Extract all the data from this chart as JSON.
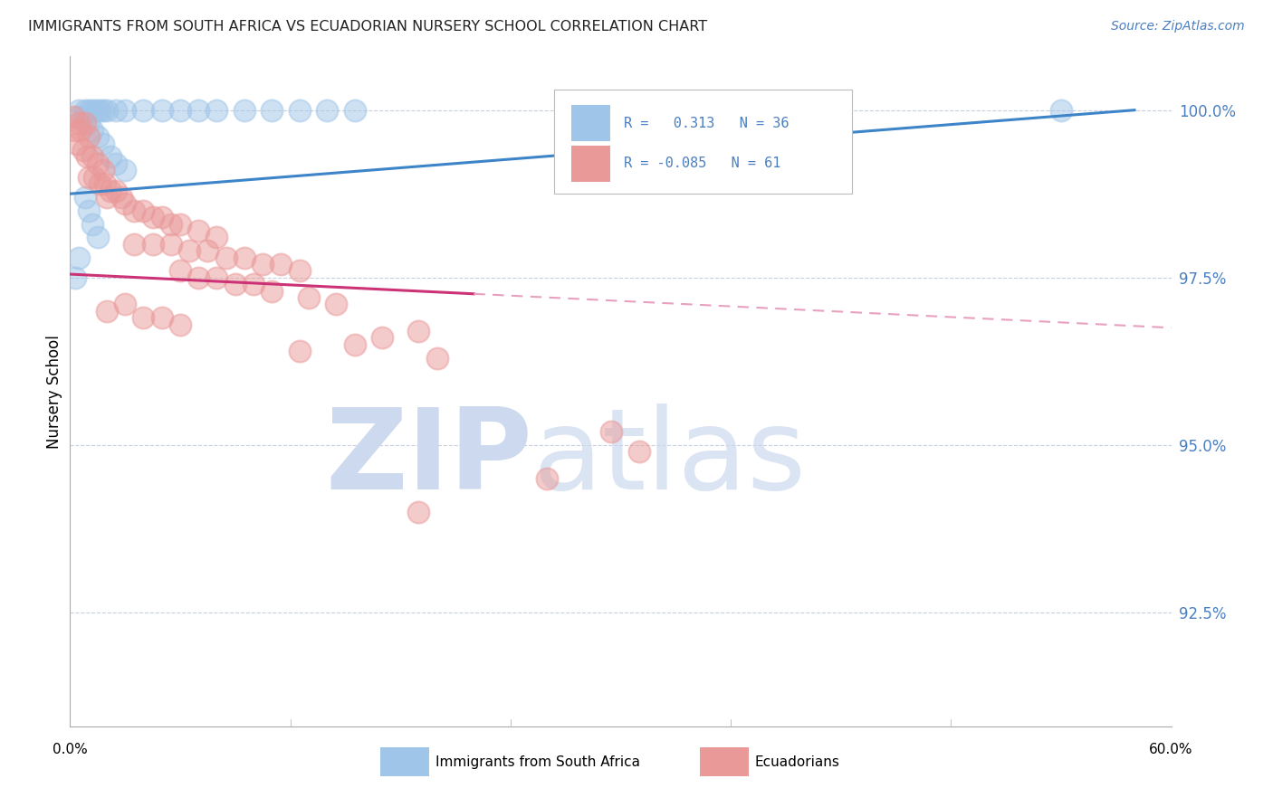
{
  "title": "IMMIGRANTS FROM SOUTH AFRICA VS ECUADORIAN NURSERY SCHOOL CORRELATION CHART",
  "source": "Source: ZipAtlas.com",
  "ylabel": "Nursery School",
  "ytick_labels": [
    "100.0%",
    "97.5%",
    "95.0%",
    "92.5%"
  ],
  "ytick_values": [
    1.0,
    0.975,
    0.95,
    0.925
  ],
  "xmin": 0.0,
  "xmax": 0.6,
  "ymin": 0.908,
  "ymax": 1.008,
  "legend_blue_label": "Immigrants from South Africa",
  "legend_pink_label": "Ecuadorians",
  "R_blue": "0.313",
  "N_blue": 36,
  "R_pink": "-0.085",
  "N_pink": 61,
  "blue_color": "#9fc5e8",
  "pink_color": "#ea9999",
  "trendline_blue_color": "#3d85c8",
  "trendline_pink_color": "#cc3377",
  "trendline_pink_dashed_color": "#e8a0c0",
  "watermark_zip_color": "#ccd9ee",
  "watermark_atlas_color": "#ccd9ee",
  "blue_points": [
    [
      0.005,
      1.0
    ],
    [
      0.008,
      1.0
    ],
    [
      0.01,
      1.0
    ],
    [
      0.012,
      1.0
    ],
    [
      0.014,
      1.0
    ],
    [
      0.016,
      1.0
    ],
    [
      0.018,
      1.0
    ],
    [
      0.02,
      1.0
    ],
    [
      0.025,
      1.0
    ],
    [
      0.03,
      1.0
    ],
    [
      0.04,
      1.0
    ],
    [
      0.05,
      1.0
    ],
    [
      0.06,
      1.0
    ],
    [
      0.07,
      1.0
    ],
    [
      0.08,
      1.0
    ],
    [
      0.095,
      1.0
    ],
    [
      0.11,
      1.0
    ],
    [
      0.125,
      1.0
    ],
    [
      0.14,
      1.0
    ],
    [
      0.155,
      1.0
    ],
    [
      0.005,
      0.999
    ],
    [
      0.008,
      0.999
    ],
    [
      0.01,
      0.998
    ],
    [
      0.012,
      0.997
    ],
    [
      0.015,
      0.996
    ],
    [
      0.018,
      0.995
    ],
    [
      0.022,
      0.993
    ],
    [
      0.025,
      0.992
    ],
    [
      0.03,
      0.991
    ],
    [
      0.008,
      0.987
    ],
    [
      0.01,
      0.985
    ],
    [
      0.012,
      0.983
    ],
    [
      0.015,
      0.981
    ],
    [
      0.005,
      0.978
    ],
    [
      0.54,
      1.0
    ],
    [
      0.003,
      0.975
    ]
  ],
  "pink_points": [
    [
      0.002,
      0.999
    ],
    [
      0.005,
      0.998
    ],
    [
      0.008,
      0.998
    ],
    [
      0.003,
      0.997
    ],
    [
      0.006,
      0.997
    ],
    [
      0.01,
      0.996
    ],
    [
      0.004,
      0.995
    ],
    [
      0.007,
      0.994
    ],
    [
      0.009,
      0.993
    ],
    [
      0.012,
      0.993
    ],
    [
      0.015,
      0.992
    ],
    [
      0.018,
      0.991
    ],
    [
      0.01,
      0.99
    ],
    [
      0.013,
      0.99
    ],
    [
      0.016,
      0.989
    ],
    [
      0.019,
      0.989
    ],
    [
      0.022,
      0.988
    ],
    [
      0.025,
      0.988
    ],
    [
      0.028,
      0.987
    ],
    [
      0.02,
      0.987
    ],
    [
      0.03,
      0.986
    ],
    [
      0.035,
      0.985
    ],
    [
      0.04,
      0.985
    ],
    [
      0.045,
      0.984
    ],
    [
      0.05,
      0.984
    ],
    [
      0.055,
      0.983
    ],
    [
      0.06,
      0.983
    ],
    [
      0.07,
      0.982
    ],
    [
      0.08,
      0.981
    ],
    [
      0.035,
      0.98
    ],
    [
      0.045,
      0.98
    ],
    [
      0.055,
      0.98
    ],
    [
      0.065,
      0.979
    ],
    [
      0.075,
      0.979
    ],
    [
      0.085,
      0.978
    ],
    [
      0.095,
      0.978
    ],
    [
      0.105,
      0.977
    ],
    [
      0.115,
      0.977
    ],
    [
      0.125,
      0.976
    ],
    [
      0.06,
      0.976
    ],
    [
      0.07,
      0.975
    ],
    [
      0.08,
      0.975
    ],
    [
      0.09,
      0.974
    ],
    [
      0.1,
      0.974
    ],
    [
      0.11,
      0.973
    ],
    [
      0.13,
      0.972
    ],
    [
      0.145,
      0.971
    ],
    [
      0.03,
      0.971
    ],
    [
      0.02,
      0.97
    ],
    [
      0.04,
      0.969
    ],
    [
      0.05,
      0.969
    ],
    [
      0.06,
      0.968
    ],
    [
      0.19,
      0.967
    ],
    [
      0.17,
      0.966
    ],
    [
      0.155,
      0.965
    ],
    [
      0.125,
      0.964
    ],
    [
      0.2,
      0.963
    ],
    [
      0.295,
      0.952
    ],
    [
      0.31,
      0.949
    ],
    [
      0.26,
      0.945
    ],
    [
      0.19,
      0.94
    ]
  ]
}
